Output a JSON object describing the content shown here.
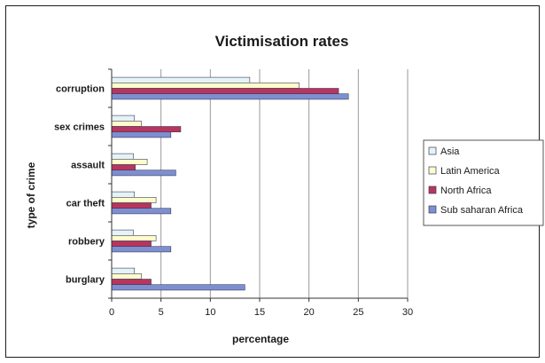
{
  "chart_data": {
    "type": "bar",
    "orientation": "horizontal",
    "title": "Victimisation rates",
    "xlabel": "percentage",
    "ylabel": "type of crime",
    "xlim": [
      0,
      30
    ],
    "xticks": [
      0,
      5,
      10,
      15,
      20,
      25,
      30
    ],
    "grid": true,
    "legend_position": "right",
    "categories": [
      "corruption",
      "sex crimes",
      "assault",
      "car theft",
      "robbery",
      "burglary"
    ],
    "series": [
      {
        "name": "Asia",
        "color": "#e4f3f6",
        "values": [
          14,
          2.3,
          2.2,
          2.3,
          2.2,
          2.3
        ]
      },
      {
        "name": "Latin America",
        "color": "#fffccc",
        "values": [
          19,
          3,
          3.6,
          4.5,
          4.5,
          3
        ]
      },
      {
        "name": "North Africa",
        "color": "#b8355e",
        "values": [
          23,
          7,
          2.4,
          4,
          4,
          4
        ]
      },
      {
        "name": "Sub saharan Africa",
        "color": "#7d8fd0",
        "values": [
          24,
          6,
          6.5,
          6,
          6,
          13.5
        ]
      }
    ]
  }
}
